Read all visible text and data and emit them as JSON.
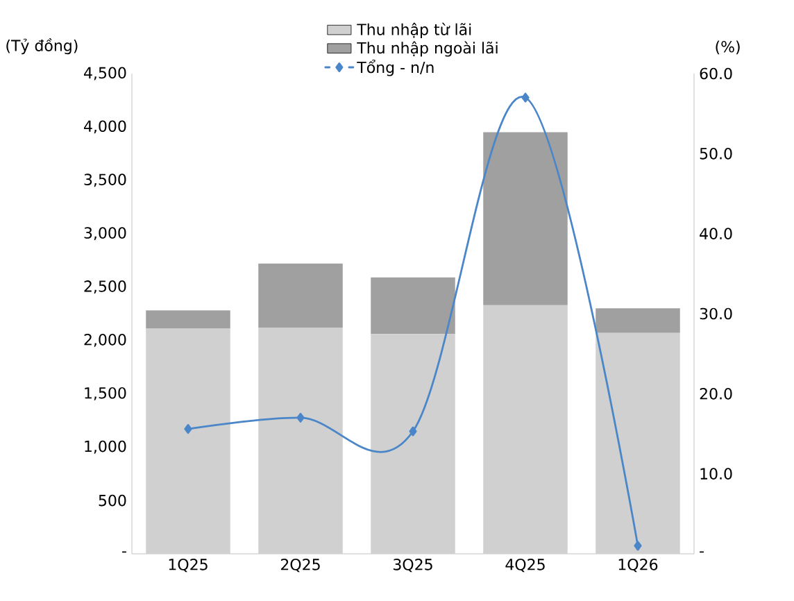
{
  "chart_data": {
    "type": "bar",
    "stacked": true,
    "ylabel": "(Tỷ đồng)",
    "y2label": "(%)",
    "legend": "top",
    "categories": [
      "1Q25",
      "2Q25",
      "3Q25",
      "4Q25",
      "1Q26"
    ],
    "ylim": [
      0,
      4500
    ],
    "yticks": [
      {
        "value": 0,
        "label": "-"
      },
      500,
      {
        "value": 1000,
        "label": "1,000"
      },
      {
        "value": 1500,
        "label": "1,500"
      },
      {
        "value": 2000,
        "label": "2,000"
      },
      {
        "value": 2500,
        "label": "2,500"
      },
      {
        "value": 3000,
        "label": "3,000"
      },
      {
        "value": 3500,
        "label": "3,500"
      },
      {
        "value": 4000,
        "label": "4,000"
      },
      {
        "value": 4500,
        "label": "4,500"
      }
    ],
    "y2lim": [
      0,
      60
    ],
    "y2ticks": [
      {
        "value": 0,
        "label": "-"
      },
      {
        "value": 10,
        "label": "10.0"
      },
      {
        "value": 20,
        "label": "20.0"
      },
      {
        "value": 30,
        "label": "30.0"
      },
      {
        "value": 40,
        "label": "40.0"
      },
      {
        "value": 50,
        "label": "50.0"
      },
      {
        "value": 60,
        "label": "60.0"
      }
    ],
    "series": [
      {
        "name": "Thu nhập từ lãi",
        "color": "#d0d0d0",
        "values": [
          2110,
          2120,
          2060,
          2330,
          2070
        ]
      },
      {
        "name": "Thu nhập ngoài lãi",
        "color": "#a0a0a0",
        "values": [
          170,
          600,
          530,
          1620,
          230
        ]
      },
      {
        "name": "Tổng - n/n",
        "type": "line",
        "axis": "y2",
        "color": "#4a86c8",
        "marker": "diamond",
        "line_style": "solid",
        "values": [
          15.6,
          17.0,
          15.3,
          57.0,
          1.0
        ]
      }
    ]
  }
}
